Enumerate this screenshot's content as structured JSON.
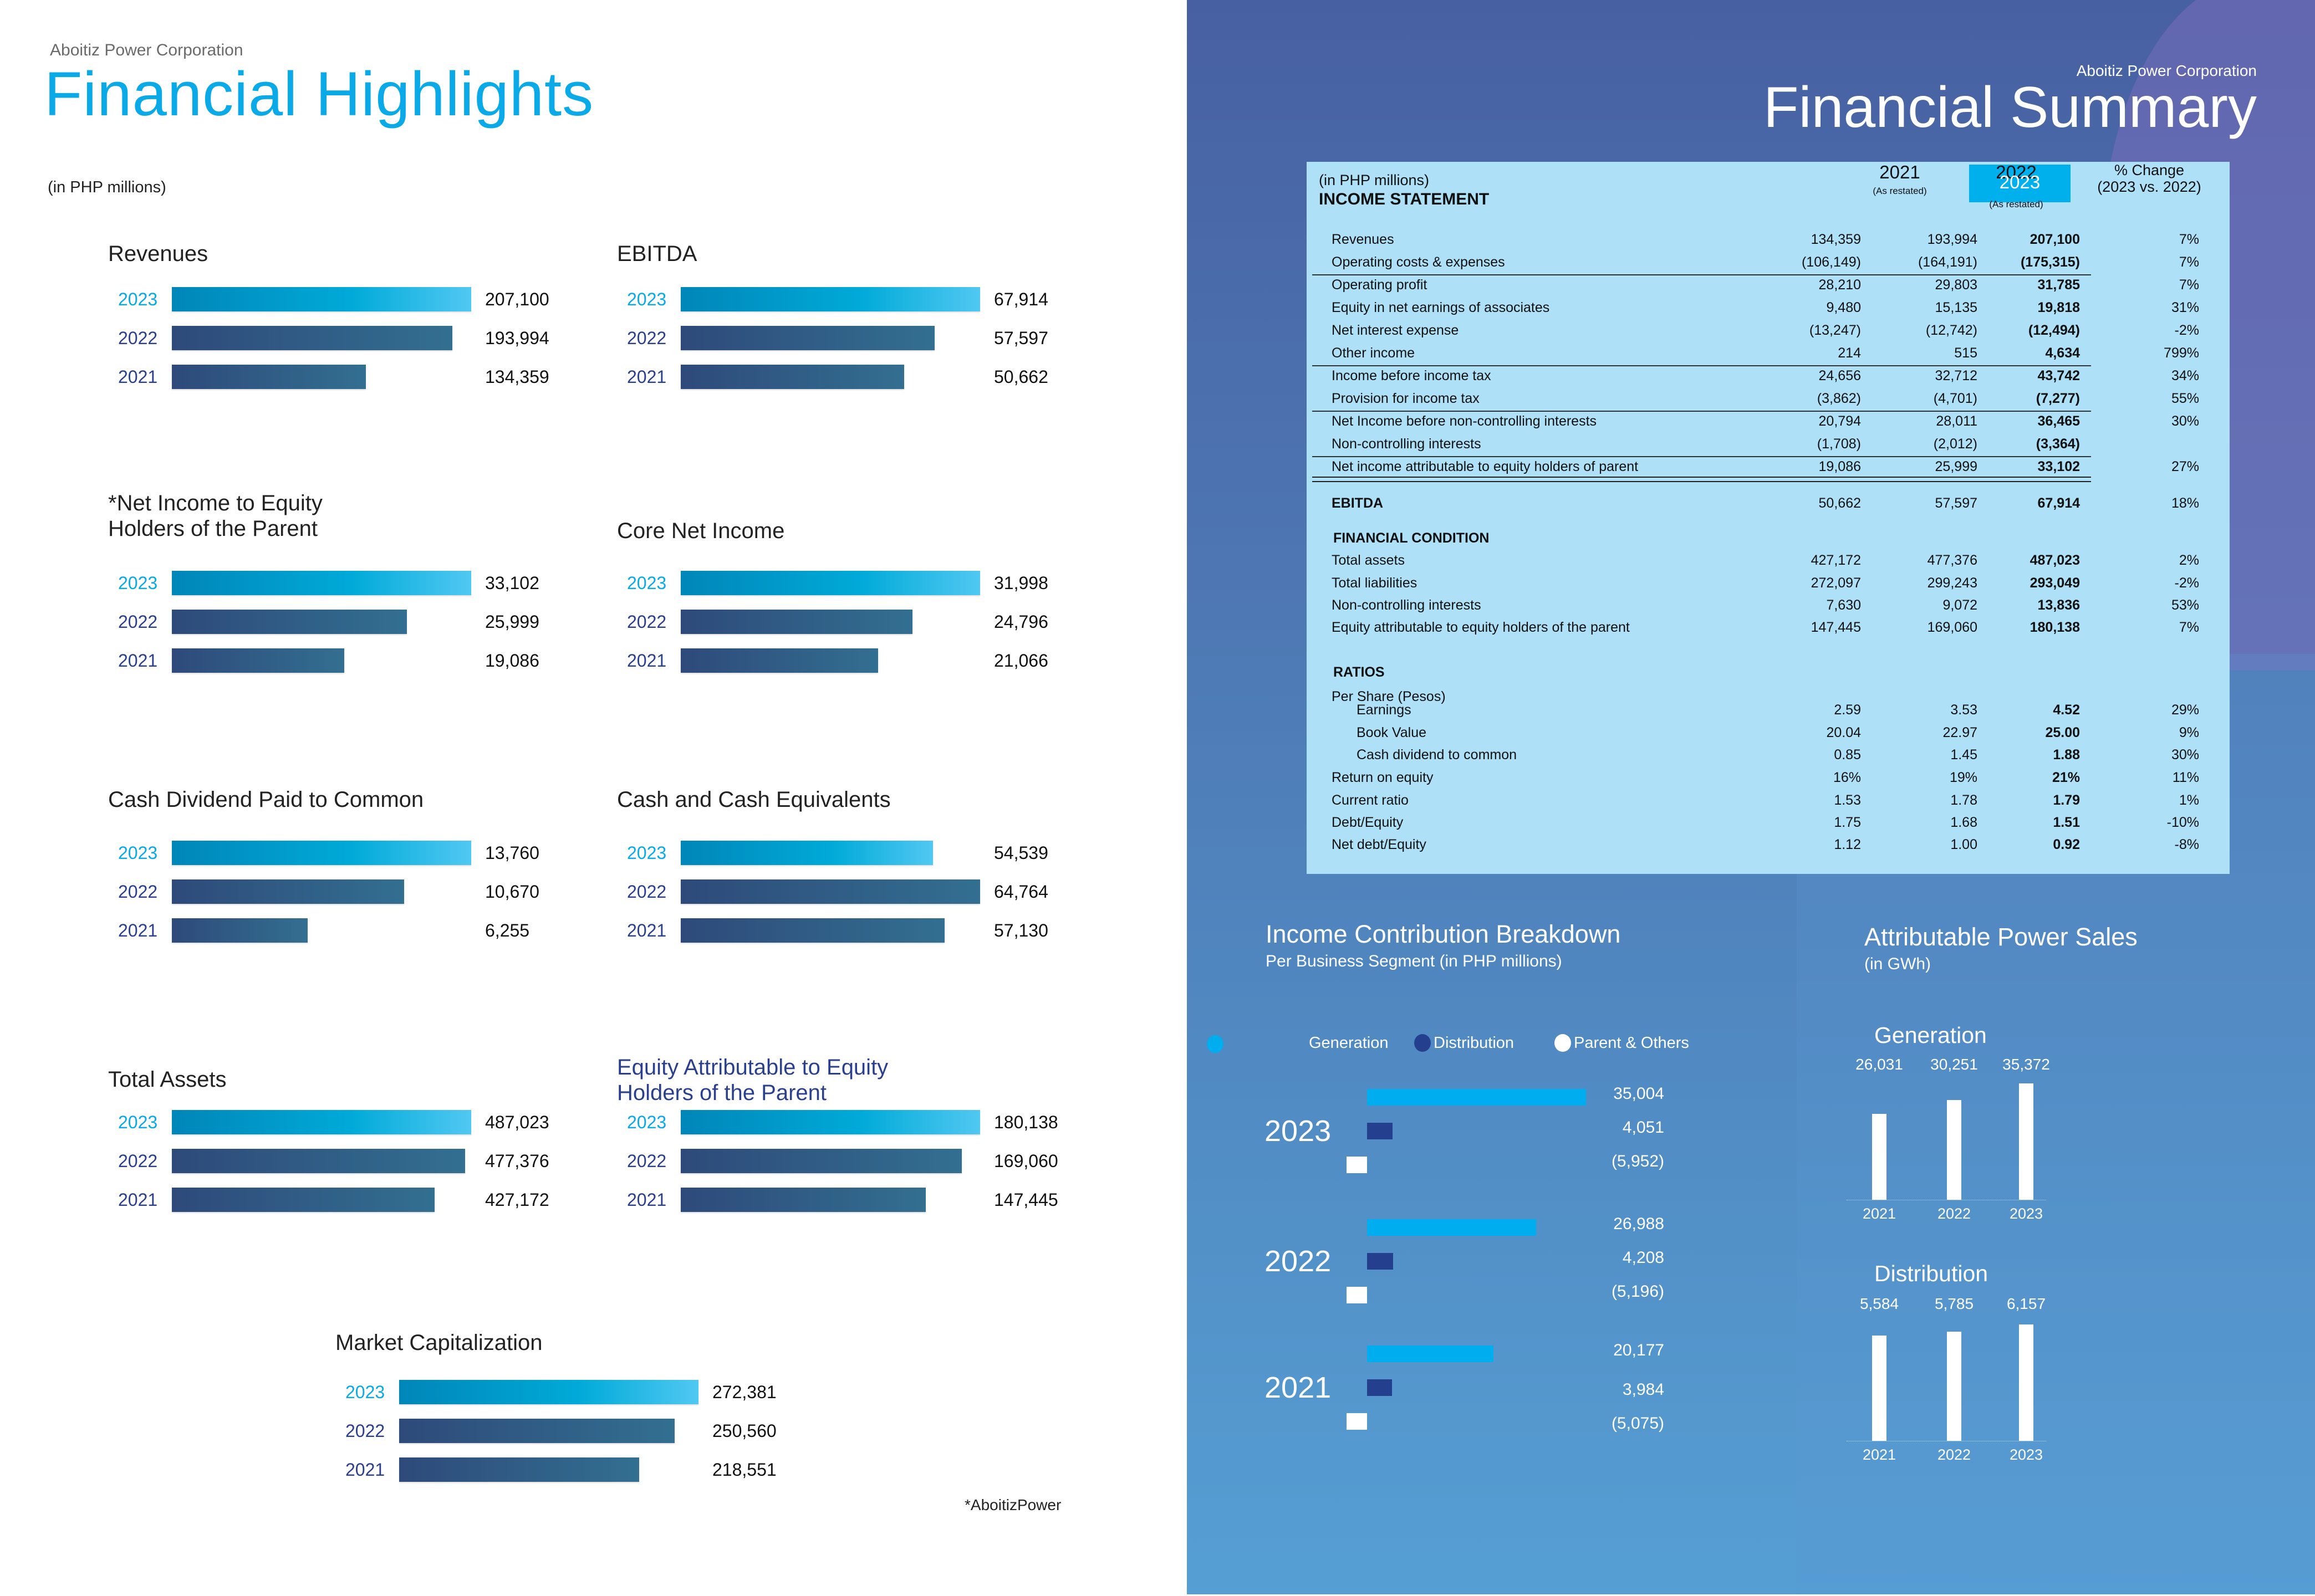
{
  "left": {
    "company": "Aboitiz Power Corporation",
    "title": "Financial Highlights",
    "unit_note": "(in PHP millions)",
    "footnote": "*AboitizPower",
    "charts": [
      {
        "title": "Revenues",
        "rows": [
          {
            "year": "2023",
            "value": 207100,
            "label": "207,100"
          },
          {
            "year": "2022",
            "value": 193994,
            "label": "193,994"
          },
          {
            "year": "2021",
            "value": 134359,
            "label": "134,359"
          }
        ]
      },
      {
        "title": "EBITDA",
        "rows": [
          {
            "year": "2023",
            "value": 67914,
            "label": "67,914"
          },
          {
            "year": "2022",
            "value": 57597,
            "label": "57,597"
          },
          {
            "year": "2021",
            "value": 50662,
            "label": "50,662"
          }
        ]
      },
      {
        "title": "*Net Income to Equity\nHolders of the Parent",
        "rows": [
          {
            "year": "2023",
            "value": 33102,
            "label": "33,102"
          },
          {
            "year": "2022",
            "value": 25999,
            "label": "25,999"
          },
          {
            "year": "2021",
            "value": 19086,
            "label": "19,086"
          }
        ]
      },
      {
        "title": "Core Net Income",
        "rows": [
          {
            "year": "2023",
            "value": 31998,
            "label": "31,998"
          },
          {
            "year": "2022",
            "value": 24796,
            "label": "24,796"
          },
          {
            "year": "2021",
            "value": 21066,
            "label": "21,066"
          }
        ]
      },
      {
        "title": "Cash Dividend Paid to Common",
        "rows": [
          {
            "year": "2023",
            "value": 13760,
            "label": "13,760"
          },
          {
            "year": "2022",
            "value": 10670,
            "label": "10,670"
          },
          {
            "year": "2021",
            "value": 6255,
            "label": "6,255"
          }
        ]
      },
      {
        "title": "Cash and Cash Equivalents",
        "rows": [
          {
            "year": "2023",
            "value": 54539,
            "label": "54,539"
          },
          {
            "year": "2022",
            "value": 64764,
            "label": "64,764"
          },
          {
            "year": "2021",
            "value": 57130,
            "label": "57,130"
          }
        ]
      },
      {
        "title": "Total Assets",
        "rows": [
          {
            "year": "2023",
            "value": 487023,
            "label": "487,023"
          },
          {
            "year": "2022",
            "value": 477376,
            "label": "477,376"
          },
          {
            "year": "2021",
            "value": 427172,
            "label": "427,172"
          }
        ]
      },
      {
        "title": "Equity Attributable to Equity\nHolders of the Parent",
        "rows": [
          {
            "year": "2023",
            "value": 180138,
            "label": "180,138"
          },
          {
            "year": "2022",
            "value": 169060,
            "label": "169,060"
          },
          {
            "year": "2021",
            "value": 147445,
            "label": "147,445"
          }
        ]
      },
      {
        "title": "Market Capitalization",
        "rows": [
          {
            "year": "2023",
            "value": 272381,
            "label": "272,381"
          },
          {
            "year": "2022",
            "value": 250560,
            "label": "250,560"
          },
          {
            "year": "2021",
            "value": 218551,
            "label": "218,551"
          }
        ]
      }
    ]
  },
  "right": {
    "company": "Aboitiz Power Corporation",
    "title": "Financial Summary",
    "table": {
      "unit_note": "(in PHP millions)",
      "section_income": "INCOME STATEMENT",
      "col_2021": "2021",
      "col_2021_note": "(As restated)",
      "col_2022": "2022",
      "col_2022_note": "(As restated)",
      "col_2023": "2023",
      "col_change": "% Change",
      "col_change_note": "(2023 vs. 2022)",
      "income_rows": [
        {
          "label": "Revenues",
          "v2021": "134,359",
          "v2022": "193,994",
          "v2023": "207,100",
          "chg": "7%"
        },
        {
          "label": "Operating costs & expenses",
          "v2021": "(106,149)",
          "v2022": "(164,191)",
          "v2023": "(175,315)",
          "chg": "7%"
        },
        {
          "label": "Operating profit",
          "v2021": "28,210",
          "v2022": "29,803",
          "v2023": "31,785",
          "chg": "7%"
        },
        {
          "label": "Equity in net earnings of associates",
          "v2021": "9,480",
          "v2022": "15,135",
          "v2023": "19,818",
          "chg": "31%"
        },
        {
          "label": "Net interest expense",
          "v2021": "(13,247)",
          "v2022": "(12,742)",
          "v2023": "(12,494)",
          "chg": "-2%"
        },
        {
          "label": "Other income",
          "v2021": "214",
          "v2022": "515",
          "v2023": "4,634",
          "chg": "799%"
        },
        {
          "label": "Income before income tax",
          "v2021": "24,656",
          "v2022": "32,712",
          "v2023": "43,742",
          "chg": "34%"
        },
        {
          "label": "Provision for income tax",
          "v2021": "(3,862)",
          "v2022": "(4,701)",
          "v2023": "(7,277)",
          "chg": "55%"
        },
        {
          "label": "Net Income before non-controlling interests",
          "v2021": "20,794",
          "v2022": "28,011",
          "v2023": "36,465",
          "chg": "30%"
        },
        {
          "label": "Non-controlling interests",
          "v2021": "(1,708)",
          "v2022": "(2,012)",
          "v2023": "(3,364)",
          "chg": ""
        },
        {
          "label": "Net income attributable to equity holders of parent",
          "v2021": "19,086",
          "v2022": "25,999",
          "v2023": "33,102",
          "chg": "27%"
        }
      ],
      "ebitda": {
        "label": "EBITDA",
        "v2021": "50,662",
        "v2022": "57,597",
        "v2023": "67,914",
        "chg": "18%"
      },
      "section_condition": "FINANCIAL CONDITION",
      "condition_rows": [
        {
          "label": "Total assets",
          "v2021": "427,172",
          "v2022": "477,376",
          "v2023": "487,023",
          "chg": "2%"
        },
        {
          "label": "Total liabilities",
          "v2021": "272,097",
          "v2022": "299,243",
          "v2023": "293,049",
          "chg": "-2%"
        },
        {
          "label": "Non-controlling interests",
          "v2021": "7,630",
          "v2022": "9,072",
          "v2023": "13,836",
          "chg": "53%"
        },
        {
          "label": "Equity attributable to equity holders of the parent",
          "v2021": "147,445",
          "v2022": "169,060",
          "v2023": "180,138",
          "chg": "7%"
        }
      ],
      "section_ratios": "RATIOS",
      "per_share_label": "Per Share (Pesos)",
      "ratio_rows": [
        {
          "label": "Earnings",
          "v2021": "2.59",
          "v2022": "3.53",
          "v2023": "4.52",
          "chg": "29%",
          "indent": true
        },
        {
          "label": "Book Value",
          "v2021": "20.04",
          "v2022": "22.97",
          "v2023": "25.00",
          "chg": "9%",
          "indent": true
        },
        {
          "label": "Cash dividend to common",
          "v2021": "0.85",
          "v2022": "1.45",
          "v2023": "1.88",
          "chg": "30%",
          "indent": true
        },
        {
          "label": "Return on equity",
          "v2021": "16%",
          "v2022": "19%",
          "v2023": "21%",
          "chg": "11%",
          "indent": false
        },
        {
          "label": "Current ratio",
          "v2021": "1.53",
          "v2022": "1.78",
          "v2023": "1.79",
          "chg": "1%",
          "indent": false
        },
        {
          "label": "Debt/Equity",
          "v2021": "1.75",
          "v2022": "1.68",
          "v2023": "1.51",
          "chg": "-10%",
          "indent": false
        },
        {
          "label": "Net debt/Equity",
          "v2021": "1.12",
          "v2022": "1.00",
          "v2023": "0.92",
          "chg": "-8%",
          "indent": false
        }
      ]
    },
    "income_contribution": {
      "title": "Income Contribution Breakdown",
      "subtitle": "Per Business Segment (in PHP millions)",
      "legend": [
        {
          "label": "Generation",
          "color": "#00aeef"
        },
        {
          "label": "Distribution",
          "color": "#253f8f"
        },
        {
          "label": "Parent & Others",
          "color": "#ffffff"
        }
      ]
    },
    "power_sales": {
      "title": "Attributable Power Sales",
      "subtitle": "(in GWh)"
    }
  },
  "chart_data": [
    {
      "type": "bar",
      "title": "Revenues",
      "categories": [
        "2023",
        "2022",
        "2021"
      ],
      "values": [
        207100,
        193994,
        134359
      ],
      "orientation": "horizontal"
    },
    {
      "type": "bar",
      "title": "EBITDA",
      "categories": [
        "2023",
        "2022",
        "2021"
      ],
      "values": [
        67914,
        57597,
        50662
      ],
      "orientation": "horizontal"
    },
    {
      "type": "bar",
      "title": "*Net Income to Equity Holders of the Parent",
      "categories": [
        "2023",
        "2022",
        "2021"
      ],
      "values": [
        33102,
        25999,
        19086
      ],
      "orientation": "horizontal"
    },
    {
      "type": "bar",
      "title": "Core Net Income",
      "categories": [
        "2023",
        "2022",
        "2021"
      ],
      "values": [
        31998,
        24796,
        21066
      ],
      "orientation": "horizontal"
    },
    {
      "type": "bar",
      "title": "Cash Dividend Paid to Common",
      "categories": [
        "2023",
        "2022",
        "2021"
      ],
      "values": [
        13760,
        10670,
        6255
      ],
      "orientation": "horizontal"
    },
    {
      "type": "bar",
      "title": "Cash and Cash Equivalents",
      "categories": [
        "2023",
        "2022",
        "2021"
      ],
      "values": [
        54539,
        64764,
        57130
      ],
      "orientation": "horizontal"
    },
    {
      "type": "bar",
      "title": "Total Assets",
      "categories": [
        "2023",
        "2022",
        "2021"
      ],
      "values": [
        487023,
        477376,
        427172
      ],
      "orientation": "horizontal"
    },
    {
      "type": "bar",
      "title": "Equity Attributable to Equity Holders of the Parent",
      "categories": [
        "2023",
        "2022",
        "2021"
      ],
      "values": [
        180138,
        169060,
        147445
      ],
      "orientation": "horizontal"
    },
    {
      "type": "bar",
      "title": "Market Capitalization",
      "categories": [
        "2023",
        "2022",
        "2021"
      ],
      "values": [
        272381,
        250560,
        218551
      ],
      "orientation": "horizontal"
    },
    {
      "type": "bar",
      "title": "Income Contribution Breakdown",
      "subtitle": "Per Business Segment (in PHP millions)",
      "categories": [
        "2023",
        "2022",
        "2021"
      ],
      "series": [
        {
          "name": "Generation",
          "values": [
            35004,
            26988,
            20177
          ],
          "labels": [
            "35,004",
            "26,988",
            "20,177"
          ]
        },
        {
          "name": "Distribution",
          "values": [
            4051,
            4208,
            3984
          ],
          "labels": [
            "4,051",
            "4,208",
            "3,984"
          ]
        },
        {
          "name": "Parent & Others",
          "values": [
            -5952,
            -5196,
            -5075
          ],
          "labels": [
            "(5,952)",
            "(5,196)",
            "(5,075)"
          ]
        }
      ],
      "orientation": "horizontal",
      "legend": "top"
    },
    {
      "type": "bar",
      "title": "Generation",
      "categories": [
        "2021",
        "2022",
        "2023"
      ],
      "values": [
        26031,
        30251,
        35372
      ],
      "labels": [
        "26,031",
        "30,251",
        "35,372"
      ],
      "ylabel": "GWh"
    },
    {
      "type": "bar",
      "title": "Distribution",
      "categories": [
        "2021",
        "2022",
        "2023"
      ],
      "values": [
        5584,
        5785,
        6157
      ],
      "labels": [
        "5,584",
        "5,785",
        "6,157"
      ],
      "ylabel": "GWh"
    }
  ]
}
